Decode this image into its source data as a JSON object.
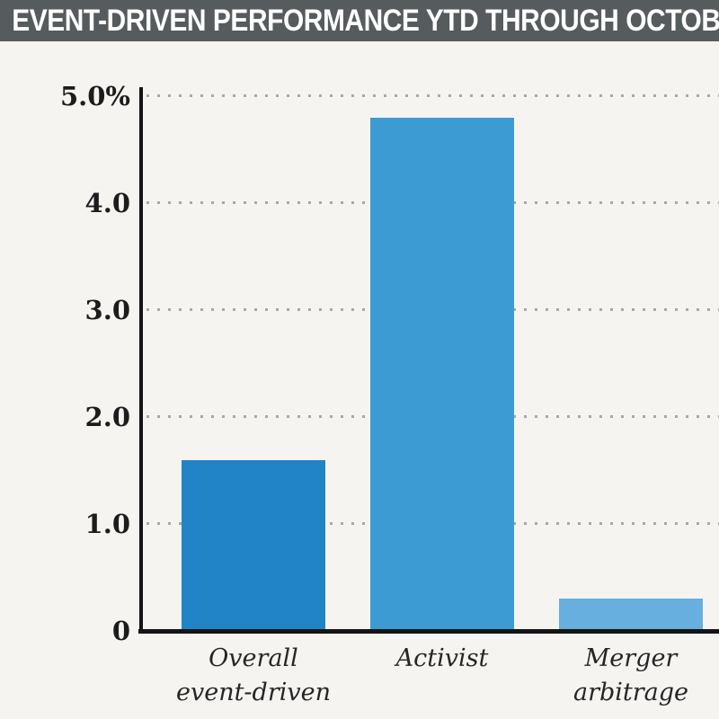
{
  "header": {
    "title": "EVENT-DRIVEN PERFORMANCE YTD THROUGH OCTOBER",
    "bg_color": "#565b5d",
    "text_color": "#ffffff"
  },
  "chart_data": {
    "type": "bar",
    "title": "EVENT-DRIVEN PERFORMANCE YTD THROUGH OCTOBER",
    "categories": [
      "Overall\nevent-driven",
      "Activist",
      "Merger\narbitrage"
    ],
    "values": [
      1.6,
      4.8,
      0.3
    ],
    "value_unit": "%",
    "bar_colors": [
      "#2184c6",
      "#3d9bd4",
      "#66afdf"
    ],
    "xlabel": "",
    "ylabel": "",
    "ylim": [
      0,
      5
    ],
    "yticks": [
      {
        "value": 0,
        "label": "0"
      },
      {
        "value": 1,
        "label": "1.0"
      },
      {
        "value": 2,
        "label": "2.0"
      },
      {
        "value": 3,
        "label": "3.0"
      },
      {
        "value": 4,
        "label": "4.0"
      },
      {
        "value": 5,
        "label": "5.0%"
      }
    ],
    "grid": "horizontal-dotted",
    "legend": "none",
    "axis_color": "#141414",
    "background_color": "#f5f4f1"
  }
}
